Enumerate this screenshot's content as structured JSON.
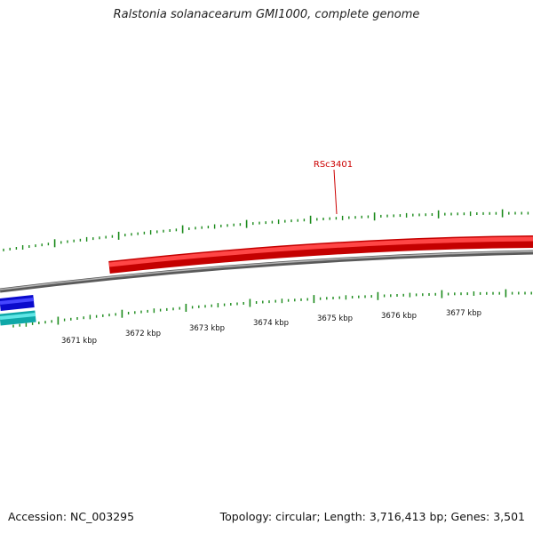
{
  "title": "Ralstonia solanacearum GMI1000, complete genome",
  "accession_text": "Accession: NC_003295",
  "stats_text": "Topology: circular; Length: 3,716,413 bp; Genes: 3,501",
  "gene_label": "RSc3401",
  "kbp_labels": [
    "3671 kbp",
    "3672 kbp",
    "3673 kbp",
    "3674 kbp",
    "3675 kbp",
    "3676 kbp",
    "3677 kbp"
  ],
  "colors": {
    "gene_forward": "#e81010",
    "gene_reverse_blue": "#1a1ae6",
    "gene_reverse_cyan": "#20c8c8",
    "backbone": "#888888",
    "ticks": "#1a8a1a",
    "label": "#cc0000"
  }
}
